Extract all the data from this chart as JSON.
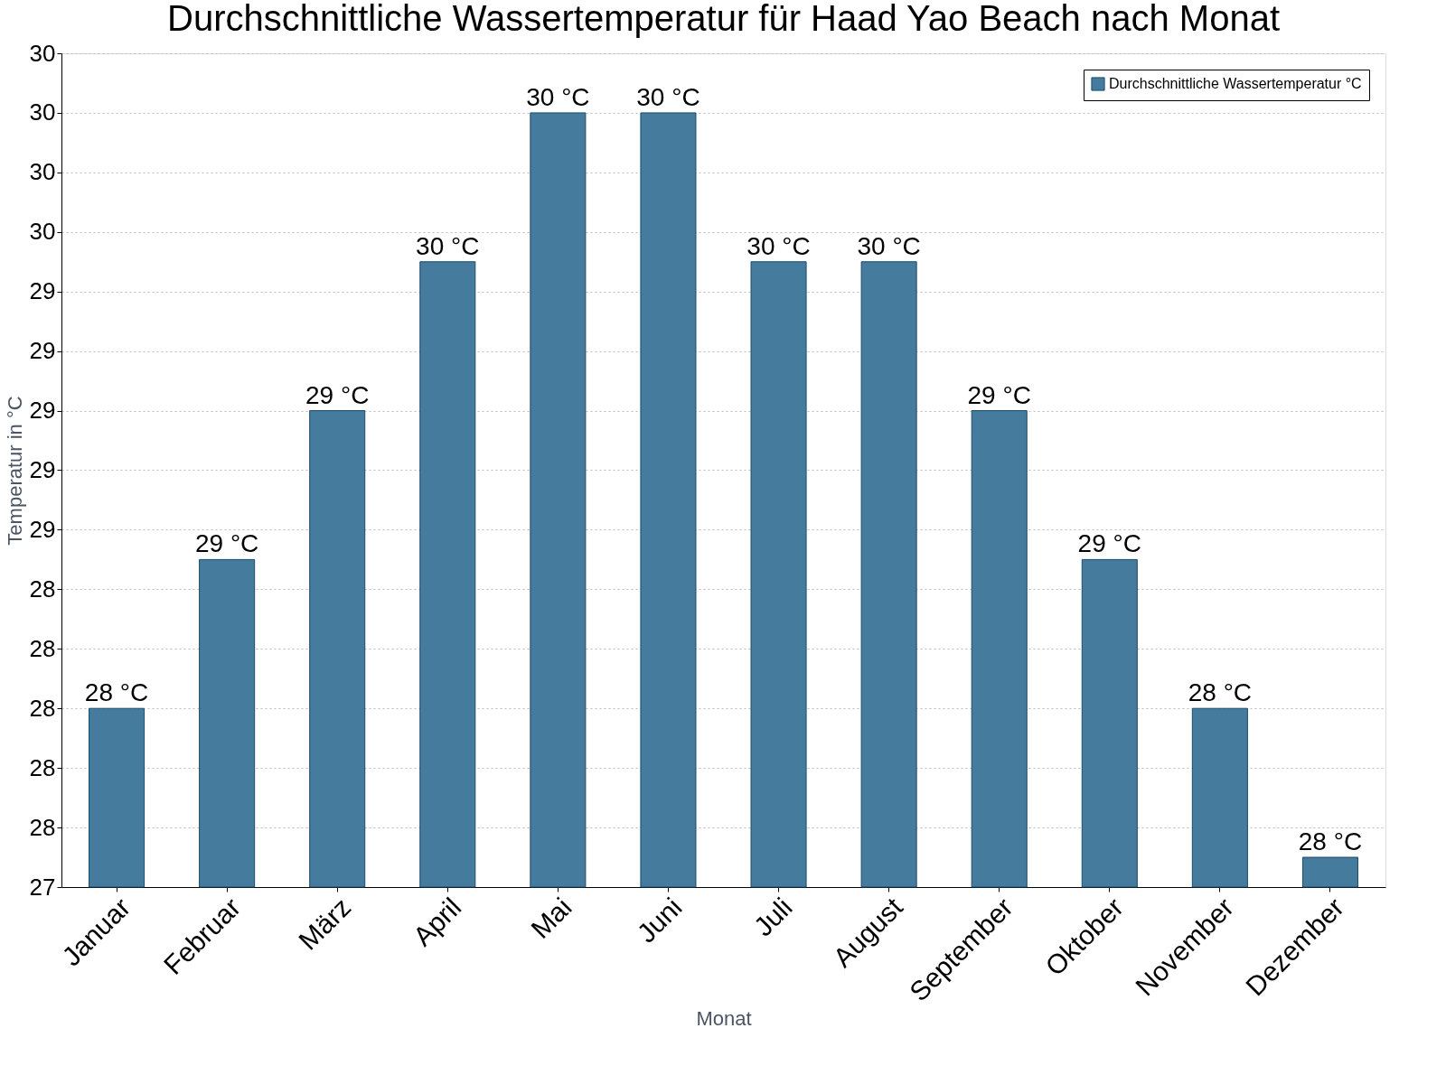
{
  "chart_data": {
    "type": "bar",
    "title": "Durchschnittliche Wassertemperatur für Haad Yao Beach nach Monat",
    "xlabel": "Monat",
    "ylabel": "Temperatur in °C",
    "categories": [
      "Januar",
      "Februar",
      "März",
      "April",
      "Mai",
      "Juni",
      "Juli",
      "August",
      "September",
      "Oktober",
      "November",
      "Dezember"
    ],
    "series": [
      {
        "name": "Durchschnittliche Wassertemperatur °C",
        "color": "#457b9d",
        "values": [
          28,
          28.5,
          29,
          29.5,
          30,
          30,
          29.5,
          29.5,
          29,
          28.5,
          28,
          27.5
        ],
        "value_labels": [
          "28 °C",
          "29 °C",
          "29 °C",
          "30 °C",
          "30 °C",
          "30 °C",
          "30 °C",
          "30 °C",
          "29 °C",
          "29 °C",
          "28 °C",
          "28 °C"
        ]
      }
    ],
    "ylim": [
      27.4,
      30.2
    ],
    "yticks": [
      {
        "value": 27.4,
        "label": "27"
      },
      {
        "value": 27.6,
        "label": "28"
      },
      {
        "value": 27.8,
        "label": "28"
      },
      {
        "value": 28.0,
        "label": "28"
      },
      {
        "value": 28.2,
        "label": "28"
      },
      {
        "value": 28.4,
        "label": "28"
      },
      {
        "value": 28.6,
        "label": "29"
      },
      {
        "value": 28.8,
        "label": "29"
      },
      {
        "value": 29.0,
        "label": "29"
      },
      {
        "value": 29.2,
        "label": "29"
      },
      {
        "value": 29.4,
        "label": "29"
      },
      {
        "value": 29.6,
        "label": "30"
      },
      {
        "value": 29.8,
        "label": "30"
      },
      {
        "value": 30.0,
        "label": "30"
      },
      {
        "value": 30.2,
        "label": "30"
      }
    ],
    "grid": "y",
    "legend": "top right"
  }
}
